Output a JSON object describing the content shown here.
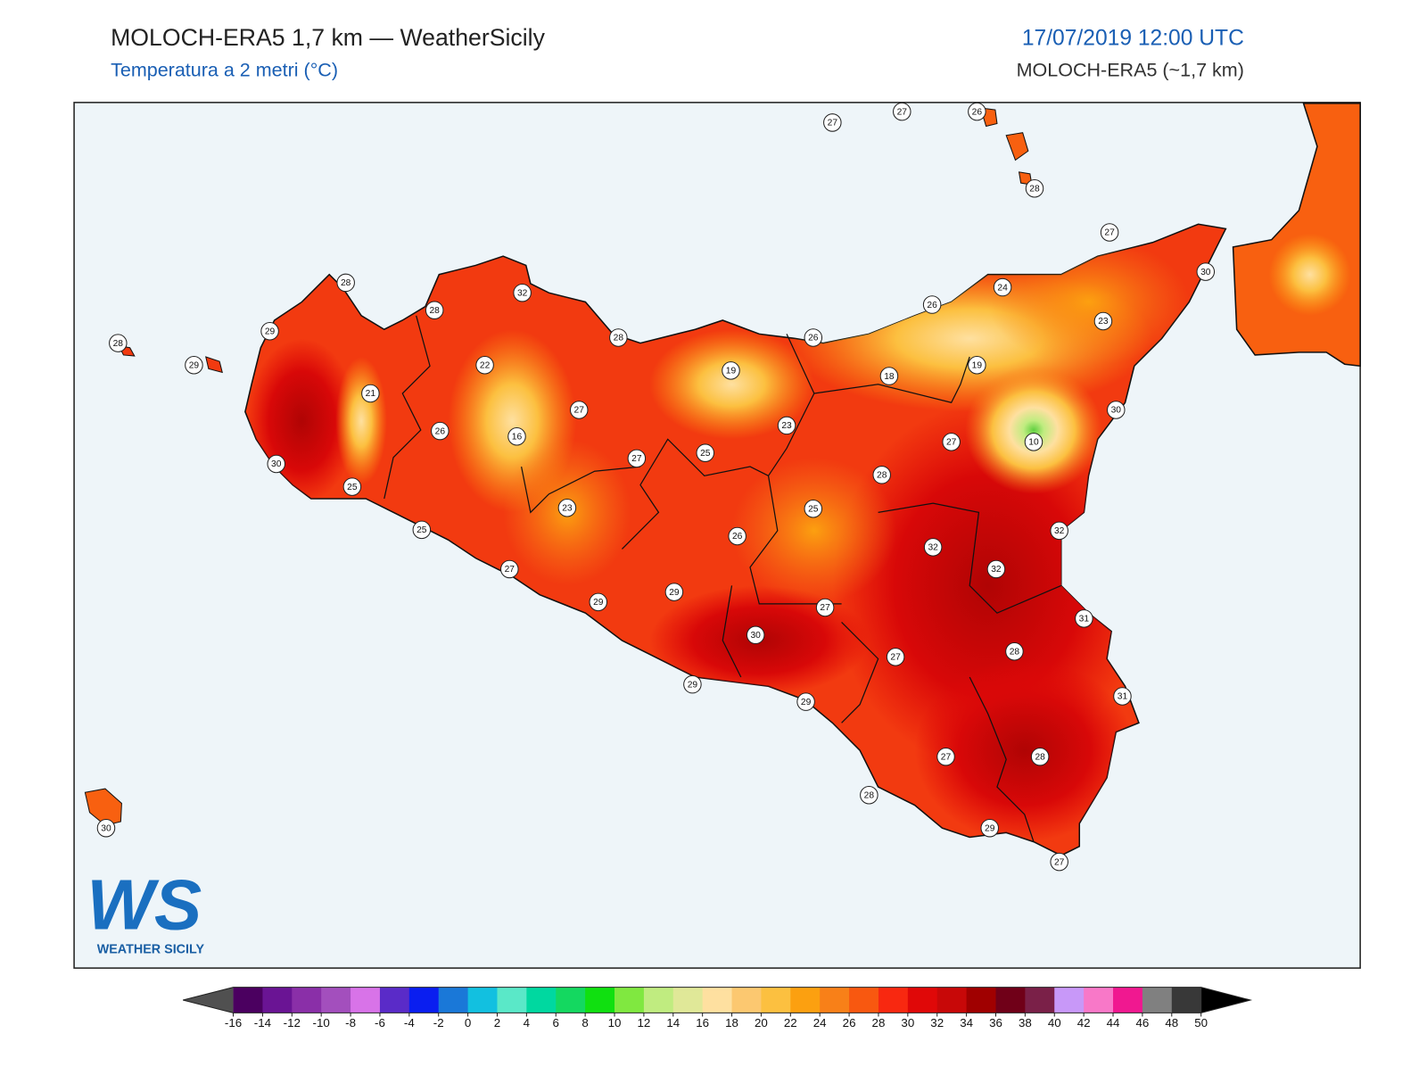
{
  "header": {
    "title": "MOLOCH-ERA5 1,7 km — WeatherSicily",
    "subtitle": "Temperatura a 2 metri (°C)",
    "datetime": "17/07/2019 12:00 UTC",
    "model": "MOLOCH-ERA5 (~1,7 km)"
  },
  "stations": [
    28,
    29,
    28,
    29,
    21,
    30,
    25,
    25,
    26,
    28,
    32,
    22,
    16,
    27,
    23,
    27,
    29,
    29,
    27,
    25,
    28,
    19,
    23,
    26,
    26,
    25,
    30,
    29,
    29,
    27,
    28,
    18,
    27,
    32,
    32,
    19,
    10,
    26,
    24,
    23,
    27,
    30,
    30,
    32,
    31,
    28,
    27,
    31,
    28,
    27,
    28,
    29,
    27,
    30,
    27,
    27,
    26,
    28
  ],
  "logo": {
    "mark": "WS",
    "name": "WEATHER SICILY"
  },
  "colorbar": {
    "ticks": [
      -16,
      -14,
      -12,
      -10,
      -8,
      -6,
      -4,
      -2,
      0,
      2,
      4,
      6,
      8,
      10,
      12,
      14,
      16,
      18,
      20,
      22,
      24,
      26,
      28,
      30,
      32,
      34,
      36,
      38,
      40,
      42,
      44,
      46,
      48,
      50
    ],
    "colors": [
      "#4b0060",
      "#6a1494",
      "#8a2fa8",
      "#a34fbd",
      "#d873e8",
      "#5a2bc8",
      "#0a1ef0",
      "#1a78d8",
      "#12c0e0",
      "#5ae8c8",
      "#00d8a0",
      "#14d860",
      "#10e010",
      "#80e840",
      "#c0ec80",
      "#e0e898",
      "#fee0a0",
      "#fcc870",
      "#fcc040",
      "#fca010",
      "#f88018",
      "#f85810",
      "#f82810",
      "#e00808",
      "#c80808",
      "#a00000",
      "#700018",
      "#7a2048",
      "#c898f8",
      "#f878c8",
      "#f01890",
      "#808080",
      "#383838"
    ],
    "under_color": "#505050",
    "over_color": "#000000"
  }
}
